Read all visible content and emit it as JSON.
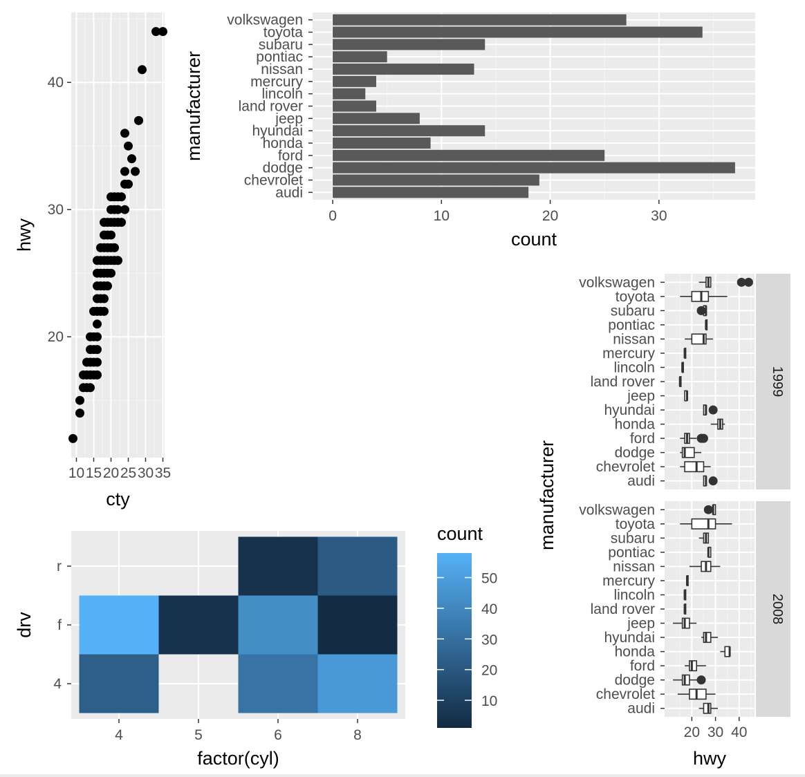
{
  "chart_data": [
    {
      "type": "scatter",
      "title": "",
      "xlabel": "cty",
      "ylabel": "hwy",
      "xlim": [
        8.5,
        35.5
      ],
      "ylim": [
        10.5,
        45.5
      ],
      "xticks": [
        10,
        15,
        20,
        25,
        30,
        35
      ],
      "yticks": [
        20,
        30,
        40
      ],
      "grid": true,
      "points": [
        [
          9,
          12
        ],
        [
          11,
          14
        ],
        [
          11,
          15
        ],
        [
          12,
          16
        ],
        [
          12,
          17
        ],
        [
          13,
          16
        ],
        [
          13,
          17
        ],
        [
          13,
          18
        ],
        [
          14,
          16
        ],
        [
          14,
          17
        ],
        [
          14,
          18
        ],
        [
          14,
          19
        ],
        [
          14,
          20
        ],
        [
          15,
          17
        ],
        [
          15,
          18
        ],
        [
          15,
          19
        ],
        [
          15,
          20
        ],
        [
          15,
          22
        ],
        [
          16,
          17
        ],
        [
          16,
          18
        ],
        [
          16,
          19
        ],
        [
          16,
          20
        ],
        [
          16,
          21
        ],
        [
          16,
          22
        ],
        [
          16,
          23
        ],
        [
          16,
          24
        ],
        [
          16,
          25
        ],
        [
          16,
          26
        ],
        [
          17,
          22
        ],
        [
          17,
          23
        ],
        [
          17,
          24
        ],
        [
          17,
          25
        ],
        [
          17,
          26
        ],
        [
          17,
          27
        ],
        [
          18,
          22
        ],
        [
          18,
          23
        ],
        [
          18,
          24
        ],
        [
          18,
          25
        ],
        [
          18,
          26
        ],
        [
          18,
          27
        ],
        [
          18,
          28
        ],
        [
          18,
          29
        ],
        [
          19,
          24
        ],
        [
          19,
          25
        ],
        [
          19,
          26
        ],
        [
          19,
          27
        ],
        [
          19,
          28
        ],
        [
          19,
          29
        ],
        [
          20,
          25
        ],
        [
          20,
          26
        ],
        [
          20,
          27
        ],
        [
          20,
          28
        ],
        [
          20,
          29
        ],
        [
          20,
          30
        ],
        [
          20,
          31
        ],
        [
          21,
          26
        ],
        [
          21,
          27
        ],
        [
          21,
          29
        ],
        [
          21,
          30
        ],
        [
          21,
          31
        ],
        [
          22,
          26
        ],
        [
          22,
          29
        ],
        [
          22,
          30
        ],
        [
          22,
          31
        ],
        [
          23,
          29
        ],
        [
          23,
          31
        ],
        [
          24,
          30
        ],
        [
          24,
          32
        ],
        [
          24,
          33
        ],
        [
          24,
          36
        ],
        [
          25,
          32
        ],
        [
          25,
          35
        ],
        [
          26,
          34
        ],
        [
          27,
          33
        ],
        [
          28,
          37
        ],
        [
          29,
          41
        ],
        [
          33,
          44
        ],
        [
          35,
          44
        ]
      ]
    },
    {
      "type": "bar",
      "orientation": "horizontal",
      "title": "",
      "xlabel": "count",
      "ylabel": "manufacturer",
      "categories": [
        "audi",
        "chevrolet",
        "dodge",
        "ford",
        "honda",
        "hyundai",
        "jeep",
        "land rover",
        "lincoln",
        "mercury",
        "nissan",
        "pontiac",
        "subaru",
        "toyota",
        "volkswagen"
      ],
      "values": [
        18,
        19,
        37,
        25,
        9,
        14,
        8,
        4,
        3,
        4,
        13,
        5,
        14,
        34,
        27
      ],
      "xlim": [
        -1.85,
        38.85
      ],
      "xticks": [
        0,
        10,
        20,
        30
      ],
      "grid": true
    },
    {
      "type": "heatmap",
      "title": "",
      "xlabel": "factor(cyl)",
      "ylabel": "drv",
      "x_categories": [
        "4",
        "5",
        "6",
        "8"
      ],
      "y_categories": [
        "4",
        "f",
        "r"
      ],
      "cells": [
        {
          "x": "4",
          "y": "4",
          "count": 23
        },
        {
          "x": "4",
          "y": "f",
          "count": 58
        },
        {
          "x": "5",
          "y": "f",
          "count": 4
        },
        {
          "x": "6",
          "y": "4",
          "count": 32
        },
        {
          "x": "6",
          "y": "f",
          "count": 43
        },
        {
          "x": "6",
          "y": "r",
          "count": 4
        },
        {
          "x": "8",
          "y": "4",
          "count": 48
        },
        {
          "x": "8",
          "y": "f",
          "count": 1
        },
        {
          "x": "8",
          "y": "r",
          "count": 21
        }
      ],
      "legend": {
        "title": "count",
        "breaks": [
          10,
          20,
          30,
          40,
          50
        ],
        "min": 1,
        "max": 58,
        "low_color": "#132b43",
        "high_color": "#56b1f7",
        "placement": "right"
      }
    },
    {
      "type": "box",
      "orientation": "horizontal",
      "title": "",
      "xlabel": "hwy",
      "ylabel": "manufacturer",
      "xlim": [
        8.5,
        46.5
      ],
      "xticks": [
        20,
        30,
        40
      ],
      "categories": [
        "audi",
        "chevrolet",
        "dodge",
        "ford",
        "honda",
        "hyundai",
        "jeep",
        "land rover",
        "lincoln",
        "mercury",
        "nissan",
        "pontiac",
        "subaru",
        "toyota",
        "volkswagen"
      ],
      "facets": [
        {
          "label": "1999",
          "boxes": [
            {
              "cat": "audi",
              "lo": 25,
              "q1": 25,
              "med": 26,
              "q3": 26,
              "hi": 26,
              "out": [
                29
              ]
            },
            {
              "cat": "chevrolet",
              "lo": 15,
              "q1": 17,
              "med": 22,
              "q3": 25,
              "hi": 28,
              "out": []
            },
            {
              "cat": "dodge",
              "lo": 15,
              "q1": 16,
              "med": 17,
              "q3": 21,
              "hi": 24,
              "out": []
            },
            {
              "cat": "ford",
              "lo": 15,
              "q1": 17,
              "med": 18,
              "q3": 19,
              "hi": 22,
              "out": [
                24,
                25
              ]
            },
            {
              "cat": "honda",
              "lo": 28,
              "q1": 31,
              "med": 32,
              "q3": 33,
              "hi": 34,
              "out": []
            },
            {
              "cat": "hyundai",
              "lo": 25,
              "q1": 25,
              "med": 26,
              "q3": 26,
              "hi": 26,
              "out": [
                29
              ]
            },
            {
              "cat": "jeep",
              "lo": 17,
              "q1": 17,
              "med": 18,
              "q3": 18,
              "hi": 18,
              "out": []
            },
            {
              "cat": "land rover",
              "lo": 15,
              "q1": 15,
              "med": 15,
              "q3": 15,
              "hi": 15,
              "out": []
            },
            {
              "cat": "lincoln",
              "lo": 16,
              "q1": 16,
              "med": 16,
              "q3": 16,
              "hi": 16,
              "out": []
            },
            {
              "cat": "mercury",
              "lo": 17,
              "q1": 17,
              "med": 17,
              "q3": 17,
              "hi": 17,
              "out": []
            },
            {
              "cat": "nissan",
              "lo": 17,
              "q1": 20,
              "med": 25,
              "q3": 26,
              "hi": 29,
              "out": []
            },
            {
              "cat": "pontiac",
              "lo": 26,
              "q1": 26,
              "med": 26,
              "q3": 26,
              "hi": 26,
              "out": []
            },
            {
              "cat": "subaru",
              "lo": 25,
              "q1": 25,
              "med": 26,
              "q3": 26,
              "hi": 26,
              "out": [
                24
              ]
            },
            {
              "cat": "toyota",
              "lo": 15,
              "q1": 20,
              "med": 24,
              "q3": 27,
              "hi": 35,
              "out": []
            },
            {
              "cat": "volkswagen",
              "lo": 23,
              "q1": 26,
              "med": 27,
              "q3": 28,
              "hi": 28,
              "out": [
                41,
                44
              ]
            }
          ]
        },
        {
          "label": "2008",
          "boxes": [
            {
              "cat": "audi",
              "lo": 23,
              "q1": 25,
              "med": 27,
              "q3": 28,
              "hi": 31,
              "out": []
            },
            {
              "cat": "chevrolet",
              "lo": 14,
              "q1": 19,
              "med": 22,
              "q3": 26,
              "hi": 30,
              "out": []
            },
            {
              "cat": "dodge",
              "lo": 12,
              "q1": 16,
              "med": 17,
              "q3": 19,
              "hi": 23,
              "out": [
                24
              ]
            },
            {
              "cat": "ford",
              "lo": 17,
              "q1": 19,
              "med": 20,
              "q3": 22,
              "hi": 26,
              "out": []
            },
            {
              "cat": "honda",
              "lo": 32,
              "q1": 34,
              "med": 36,
              "q3": 36,
              "hi": 36,
              "out": []
            },
            {
              "cat": "hyundai",
              "lo": 24,
              "q1": 25,
              "med": 26,
              "q3": 28,
              "hi": 31,
              "out": []
            },
            {
              "cat": "jeep",
              "lo": 12,
              "q1": 16,
              "med": 17,
              "q3": 19,
              "hi": 22,
              "out": []
            },
            {
              "cat": "land rover",
              "lo": 17,
              "q1": 17,
              "med": 17,
              "q3": 17,
              "hi": 17,
              "out": []
            },
            {
              "cat": "lincoln",
              "lo": 17,
              "q1": 17,
              "med": 17,
              "q3": 17,
              "hi": 17,
              "out": []
            },
            {
              "cat": "mercury",
              "lo": 18,
              "q1": 18,
              "med": 18,
              "q3": 18,
              "hi": 18,
              "out": []
            },
            {
              "cat": "nissan",
              "lo": 19,
              "q1": 24,
              "med": 26,
              "q3": 28,
              "hi": 32,
              "out": []
            },
            {
              "cat": "pontiac",
              "lo": 27,
              "q1": 27,
              "med": 27,
              "q3": 28,
              "hi": 28,
              "out": []
            },
            {
              "cat": "subaru",
              "lo": 23,
              "q1": 25,
              "med": 26,
              "q3": 27,
              "hi": 27,
              "out": []
            },
            {
              "cat": "toyota",
              "lo": 15,
              "q1": 20,
              "med": 27,
              "q3": 30,
              "hi": 37,
              "out": []
            },
            {
              "cat": "volkswagen",
              "lo": 29,
              "q1": 29,
              "med": 29,
              "q3": 30,
              "hi": 30,
              "out": [
                27
              ]
            }
          ]
        }
      ]
    }
  ]
}
